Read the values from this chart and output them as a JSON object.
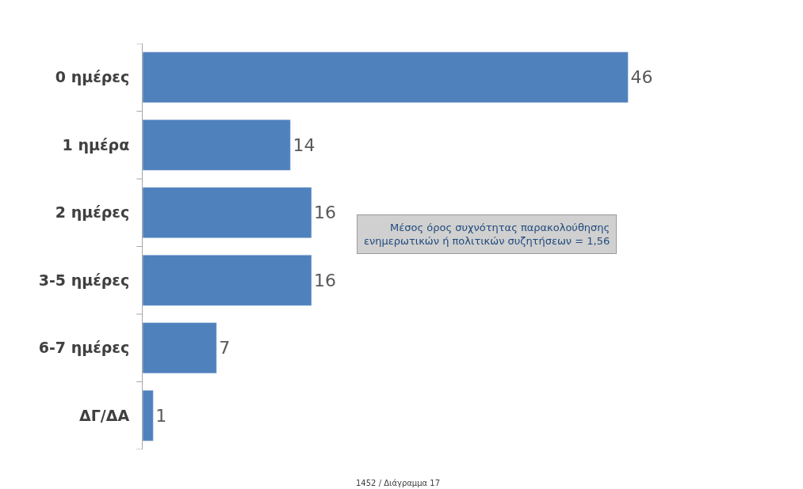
{
  "chart_data": {
    "type": "bar",
    "orientation": "horizontal",
    "categories": [
      "0 ημέρες",
      "1 ημέρα",
      "2 ημέρες",
      "3-5 ημέρες",
      "6-7 ημέρες",
      "ΔΓ/ΔΑ"
    ],
    "values": [
      46,
      14,
      16,
      16,
      7,
      1
    ],
    "color": "#4f81bd",
    "data_labels": true,
    "tick_labels": "y",
    "legend": false,
    "annotations": [
      "Μέσος όρος συχνότητας παρακολούθησης\nενημερωτικών ή πολιτικών συζητήσεων = 1,56",
      "1452 / Διάγραμμα 17"
    ]
  }
}
